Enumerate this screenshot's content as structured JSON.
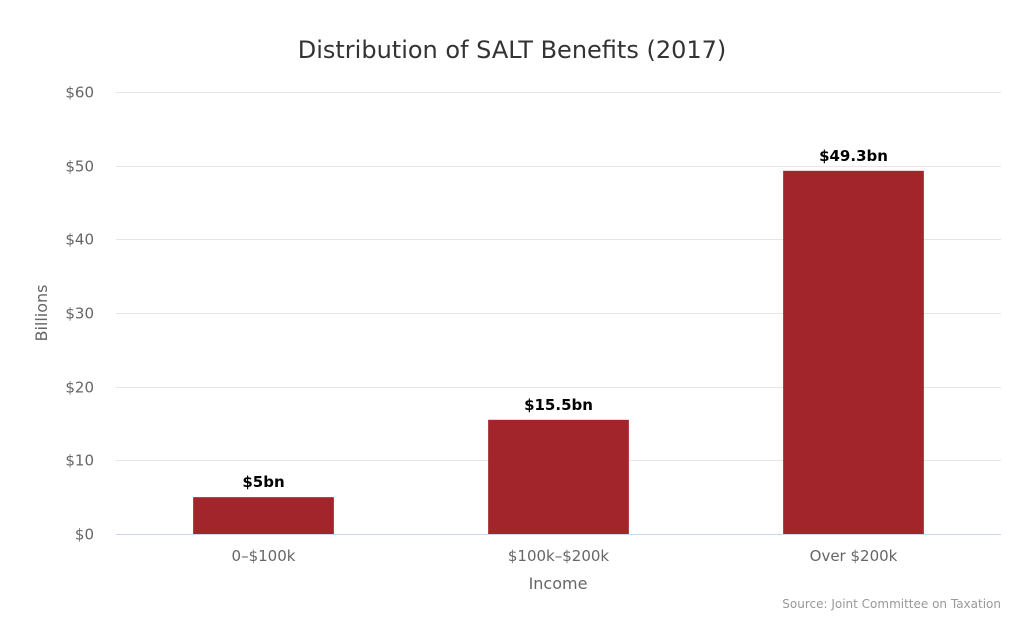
{
  "chart_data": {
    "type": "bar",
    "title": "Distribution of SALT Benefits (2017)",
    "xlabel": "Income",
    "ylabel": "Billions",
    "categories": [
      "0–$100k",
      "$100k–$200k",
      "Over $200k"
    ],
    "values": [
      5,
      15.5,
      49.3
    ],
    "data_labels": [
      "$5bn",
      "$15.5bn",
      "$49.3bn"
    ],
    "ylim": [
      0,
      60
    ],
    "yticks": [
      0,
      10,
      20,
      30,
      40,
      50,
      60
    ],
    "ytick_labels": [
      "$0",
      "$10",
      "$20",
      "$30",
      "$40",
      "$50",
      "$60"
    ],
    "grid": true,
    "legend": "none",
    "bar_color": "#a2252b",
    "credits": "Source: Joint Committee on Taxation"
  }
}
